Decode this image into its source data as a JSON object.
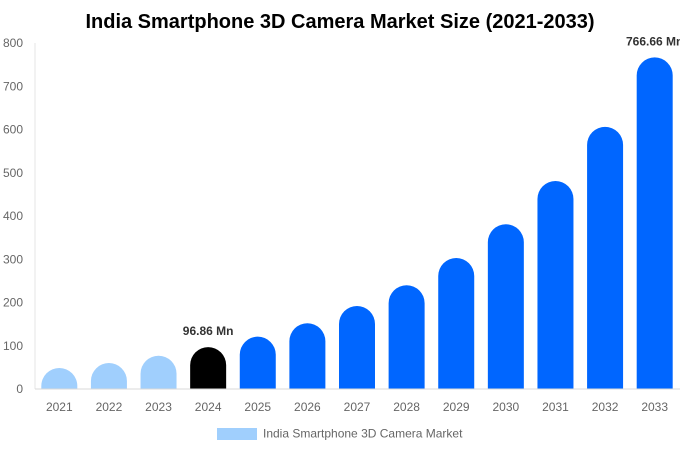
{
  "chart_data": {
    "type": "bar",
    "title": "India Smartphone 3D Camera Market Size (2021-2033)",
    "xlabel": "",
    "ylabel": "",
    "categories": [
      "2021",
      "2022",
      "2023",
      "2024",
      "2025",
      "2026",
      "2027",
      "2028",
      "2029",
      "2030",
      "2031",
      "2032",
      "2033"
    ],
    "series": [
      {
        "name": "India Smartphone 3D Camera Market",
        "values": [
          48.6,
          60,
          77,
          96.86,
          121,
          152,
          192,
          240,
          303,
          381,
          481,
          606,
          766.66
        ]
      }
    ],
    "data_labels": {
      "3": "96.86 Mn",
      "12": "766.66 Mn"
    },
    "ylim": [
      0,
      800
    ],
    "yticks": [
      0,
      100,
      200,
      300,
      400,
      500,
      600,
      700,
      800
    ],
    "grid": false,
    "legend": "bottom",
    "colors": {
      "historical": "#a0cffd",
      "base_year": "#000000",
      "forecast": "#0066ff"
    },
    "bar_color_by_index": [
      "historical",
      "historical",
      "historical",
      "base_year",
      "forecast",
      "forecast",
      "forecast",
      "forecast",
      "forecast",
      "forecast",
      "forecast",
      "forecast",
      "forecast"
    ]
  }
}
